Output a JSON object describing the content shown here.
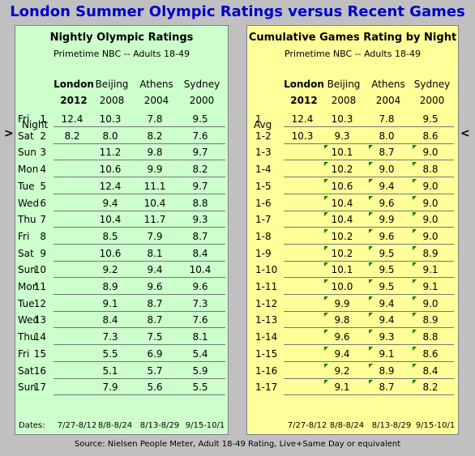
{
  "page_title": "London Summer Olympic Ratings versus Recent Games",
  "source": "Source: Nielsen People Meter, Adult 18-49 Rating, Live+Same Day or equivalent",
  "markers": {
    "left": ">",
    "right": "<"
  },
  "nightly": {
    "title": "Nightly Olympic Ratings",
    "subtitle": "Primetime NBC -- Adults 18-49",
    "row_label": "Night",
    "columns": [
      {
        "name": "London",
        "year": "2012",
        "dates": "7/27-8/12"
      },
      {
        "name": "Beijing",
        "year": "2008",
        "dates": "8/8-8/24"
      },
      {
        "name": "Athens",
        "year": "2004",
        "dates": "8/13-8/29"
      },
      {
        "name": "Sydney",
        "year": "2000",
        "dates": "9/15-10/1"
      }
    ],
    "dates_label": "Dates:",
    "rows": [
      {
        "day": "Fri",
        "night": "1",
        "values": [
          "12.4",
          "10.3",
          "7.8",
          "9.5"
        ]
      },
      {
        "day": "Sat",
        "night": "2",
        "values": [
          "8.2",
          "8.0",
          "8.2",
          "7.6"
        ]
      },
      {
        "day": "Sun",
        "night": "3",
        "values": [
          "",
          "11.2",
          "9.8",
          "9.7"
        ]
      },
      {
        "day": "Mon",
        "night": "4",
        "values": [
          "",
          "10.6",
          "9.9",
          "8.2"
        ]
      },
      {
        "day": "Tue",
        "night": "5",
        "values": [
          "",
          "12.4",
          "11.1",
          "9.7"
        ]
      },
      {
        "day": "Wed",
        "night": "6",
        "values": [
          "",
          "9.4",
          "10.4",
          "8.8"
        ]
      },
      {
        "day": "Thu",
        "night": "7",
        "values": [
          "",
          "10.4",
          "11.7",
          "9.3"
        ]
      },
      {
        "day": "Fri",
        "night": "8",
        "values": [
          "",
          "8.5",
          "7.9",
          "8.7"
        ]
      },
      {
        "day": "Sat",
        "night": "9",
        "values": [
          "",
          "10.6",
          "8.1",
          "8.4"
        ]
      },
      {
        "day": "Sun",
        "night": "10",
        "values": [
          "",
          "9.2",
          "9.4",
          "10.4"
        ]
      },
      {
        "day": "Mon",
        "night": "11",
        "values": [
          "",
          "8.9",
          "9.6",
          "9.6"
        ]
      },
      {
        "day": "Tue",
        "night": "12",
        "values": [
          "",
          "9.1",
          "8.7",
          "7.3"
        ]
      },
      {
        "day": "Wed",
        "night": "13",
        "values": [
          "",
          "8.4",
          "8.7",
          "7.6"
        ]
      },
      {
        "day": "Thu",
        "night": "14",
        "values": [
          "",
          "7.3",
          "7.5",
          "8.1"
        ]
      },
      {
        "day": "Fri",
        "night": "15",
        "values": [
          "",
          "5.5",
          "6.9",
          "5.4"
        ]
      },
      {
        "day": "Sat",
        "night": "16",
        "values": [
          "",
          "5.1",
          "5.7",
          "5.9"
        ]
      },
      {
        "day": "Sun",
        "night": "17",
        "values": [
          "",
          "7.9",
          "5.6",
          "5.5"
        ]
      }
    ]
  },
  "cumulative": {
    "title": "Cumulative Games Rating by Night",
    "subtitle": "Primetime NBC -- Adults 18-49",
    "row_label": "Avg",
    "columns": [
      {
        "name": "London",
        "year": "2012",
        "dates": "7/27-8/12"
      },
      {
        "name": "Beijing",
        "year": "2008",
        "dates": "8/8-8/24"
      },
      {
        "name": "Athens",
        "year": "2004",
        "dates": "8/13-8/29"
      },
      {
        "name": "Sydney",
        "year": "2000",
        "dates": "9/15-10/1"
      }
    ],
    "rows": [
      {
        "avg": "1",
        "values": [
          "12.4",
          "10.3",
          "7.8",
          "9.5"
        ]
      },
      {
        "avg": "1-2",
        "values": [
          "10.3",
          "9.3",
          "8.0",
          "8.6"
        ]
      },
      {
        "avg": "1-3",
        "values": [
          "",
          "10.1",
          "8.7",
          "9.0"
        ]
      },
      {
        "avg": "1-4",
        "values": [
          "",
          "10.2",
          "9.0",
          "8.8"
        ]
      },
      {
        "avg": "1-5",
        "values": [
          "",
          "10.6",
          "9.4",
          "9.0"
        ]
      },
      {
        "avg": "1-6",
        "values": [
          "",
          "10.4",
          "9.6",
          "9.0"
        ]
      },
      {
        "avg": "1-7",
        "values": [
          "",
          "10.4",
          "9.9",
          "9.0"
        ]
      },
      {
        "avg": "1-8",
        "values": [
          "",
          "10.2",
          "9.6",
          "9.0"
        ]
      },
      {
        "avg": "1-9",
        "values": [
          "",
          "10.2",
          "9.5",
          "8.9"
        ]
      },
      {
        "avg": "1-10",
        "values": [
          "",
          "10.1",
          "9.5",
          "9.1"
        ]
      },
      {
        "avg": "1-11",
        "values": [
          "",
          "10.0",
          "9.5",
          "9.1"
        ]
      },
      {
        "avg": "1-12",
        "values": [
          "",
          "9.9",
          "9.4",
          "9.0"
        ]
      },
      {
        "avg": "1-13",
        "values": [
          "",
          "9.8",
          "9.4",
          "8.9"
        ]
      },
      {
        "avg": "1-14",
        "values": [
          "",
          "9.6",
          "9.3",
          "8.8"
        ]
      },
      {
        "avg": "1-15",
        "values": [
          "",
          "9.4",
          "9.1",
          "8.6"
        ]
      },
      {
        "avg": "1-16",
        "values": [
          "",
          "9.2",
          "8.9",
          "8.4"
        ]
      },
      {
        "avg": "1-17",
        "values": [
          "",
          "9.1",
          "8.7",
          "8.2"
        ]
      }
    ]
  },
  "colors": {
    "title": "#0000cc",
    "left_panel": "#ccffcc",
    "right_panel": "#ffff99",
    "background": "#c0c0c0",
    "comment_marker": "#008000"
  }
}
